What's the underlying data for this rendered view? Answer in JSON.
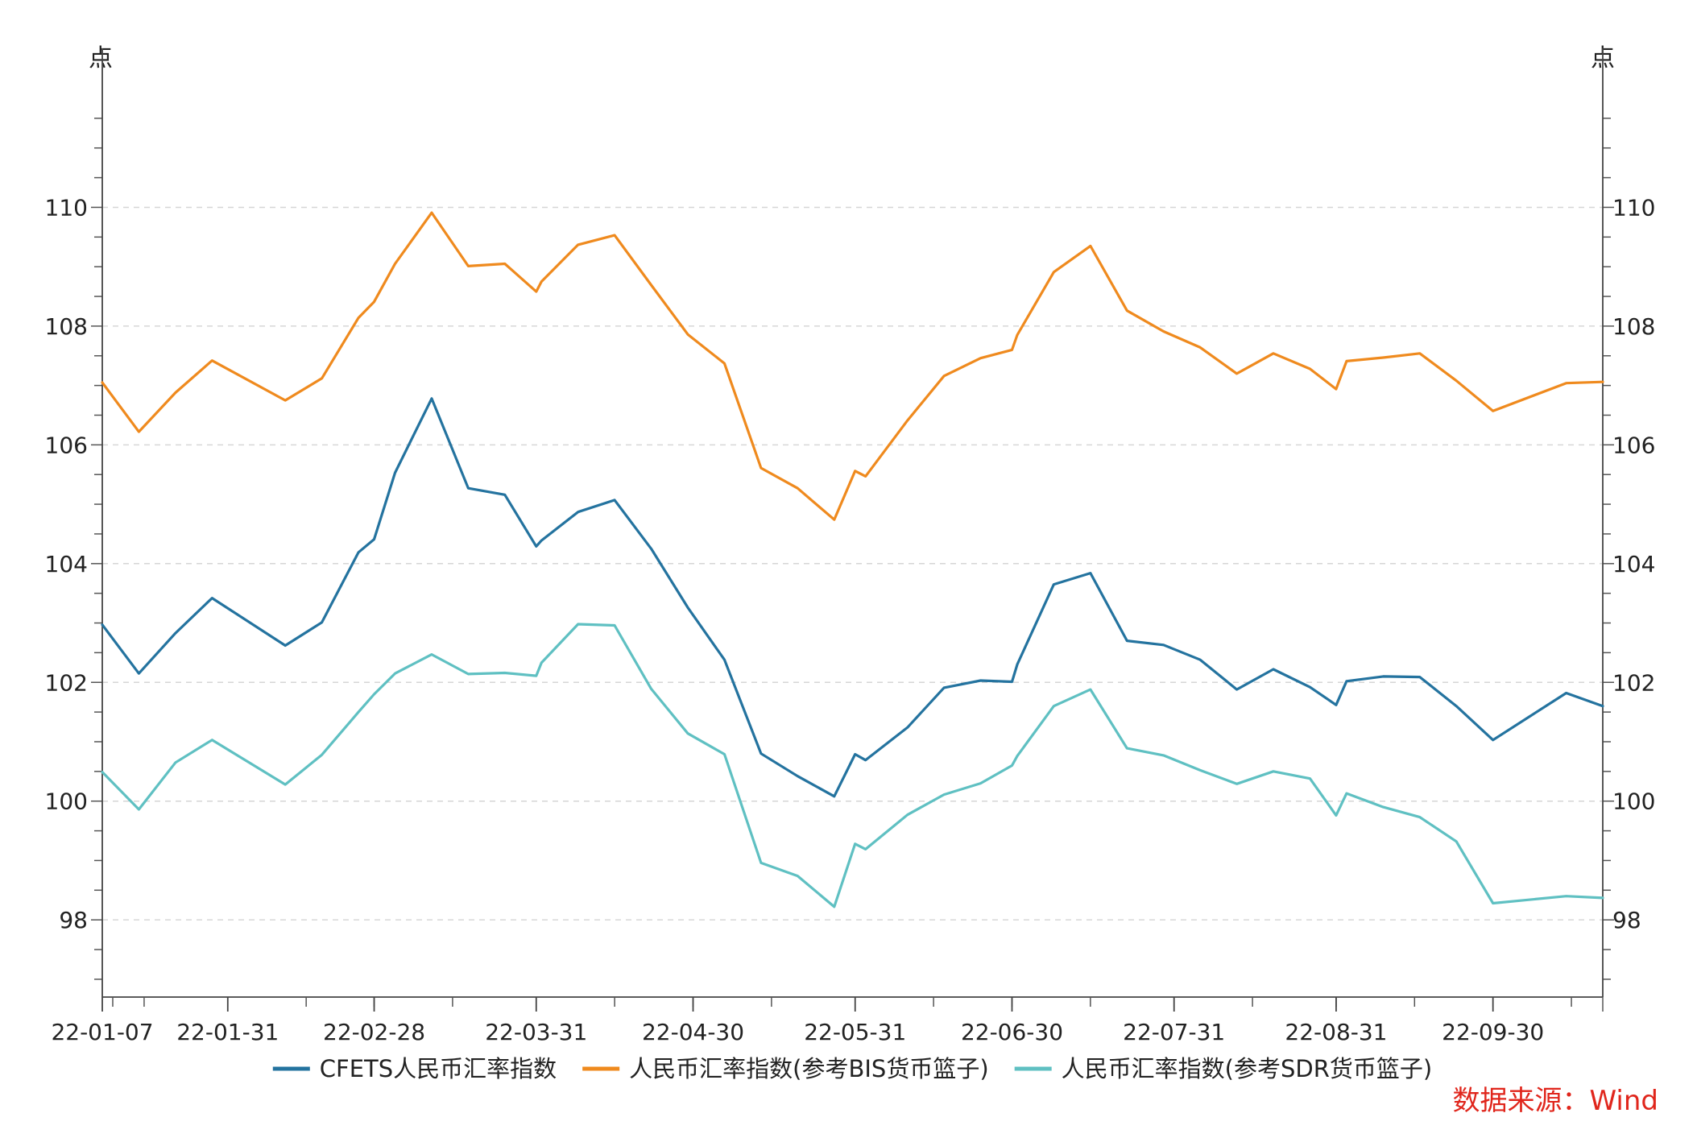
{
  "chart_data": {
    "type": "line",
    "title": "",
    "left_axis_unit": "点",
    "right_axis_unit": "点",
    "ylim": [
      96.7,
      112.0
    ],
    "y_ticks": [
      98,
      100,
      102,
      104,
      106,
      108,
      110
    ],
    "x_tick_labels": [
      "22-01-07",
      "22-01-31",
      "22-02-28",
      "22-03-31",
      "22-04-30",
      "22-05-31",
      "22-06-30",
      "22-07-31",
      "22-08-31",
      "22-09-30"
    ],
    "x_tick_dates": [
      "2022-01-07",
      "2022-01-31",
      "2022-02-28",
      "2022-03-31",
      "2022-04-30",
      "2022-05-31",
      "2022-06-30",
      "2022-07-31",
      "2022-08-31",
      "2022-09-30"
    ],
    "x_range": [
      "2022-01-07",
      "2022-10-21"
    ],
    "grid": "horizontal dashed",
    "legend_position": "bottom",
    "source_text": "数据来源：Wind",
    "series": [
      {
        "name": "CFETS人民币汇率指数",
        "color": "#24739f",
        "points": [
          [
            "2022-01-07",
            102.97
          ],
          [
            "2022-01-14",
            102.15
          ],
          [
            "2022-01-21",
            102.83
          ],
          [
            "2022-01-28",
            103.42
          ],
          [
            "2022-02-11",
            102.62
          ],
          [
            "2022-02-18",
            103.01
          ],
          [
            "2022-02-25",
            104.19
          ],
          [
            "2022-02-28",
            104.41
          ],
          [
            "2022-03-04",
            105.53
          ],
          [
            "2022-03-11",
            106.78
          ],
          [
            "2022-03-18",
            105.27
          ],
          [
            "2022-03-25",
            105.16
          ],
          [
            "2022-03-31",
            104.29
          ],
          [
            "2022-04-01",
            104.39
          ],
          [
            "2022-04-08",
            104.87
          ],
          [
            "2022-04-15",
            105.07
          ],
          [
            "2022-04-22",
            104.25
          ],
          [
            "2022-04-29",
            103.26
          ],
          [
            "2022-05-06",
            102.38
          ],
          [
            "2022-05-13",
            100.8
          ],
          [
            "2022-05-20",
            100.42
          ],
          [
            "2022-05-27",
            100.08
          ],
          [
            "2022-05-31",
            100.79
          ],
          [
            "2022-06-02",
            100.69
          ],
          [
            "2022-06-10",
            101.24
          ],
          [
            "2022-06-17",
            101.91
          ],
          [
            "2022-06-24",
            102.03
          ],
          [
            "2022-06-30",
            102.01
          ],
          [
            "2022-07-01",
            102.3
          ],
          [
            "2022-07-08",
            103.65
          ],
          [
            "2022-07-15",
            103.84
          ],
          [
            "2022-07-22",
            102.7
          ],
          [
            "2022-07-29",
            102.63
          ],
          [
            "2022-08-05",
            102.38
          ],
          [
            "2022-08-12",
            101.88
          ],
          [
            "2022-08-19",
            102.22
          ],
          [
            "2022-08-26",
            101.92
          ],
          [
            "2022-08-31",
            101.62
          ],
          [
            "2022-09-02",
            102.02
          ],
          [
            "2022-09-09",
            102.1
          ],
          [
            "2022-09-16",
            102.09
          ],
          [
            "2022-09-23",
            101.6
          ],
          [
            "2022-09-30",
            101.03
          ],
          [
            "2022-10-14",
            101.82
          ],
          [
            "2022-10-21",
            101.6
          ]
        ]
      },
      {
        "name": "人民币汇率指数(参考BIS货币篮子)",
        "color": "#ef8a1e",
        "points": [
          [
            "2022-01-07",
            107.05
          ],
          [
            "2022-01-14",
            106.22
          ],
          [
            "2022-01-21",
            106.88
          ],
          [
            "2022-01-28",
            107.42
          ],
          [
            "2022-02-11",
            106.75
          ],
          [
            "2022-02-18",
            107.12
          ],
          [
            "2022-02-25",
            108.14
          ],
          [
            "2022-02-28",
            108.41
          ],
          [
            "2022-03-04",
            109.05
          ],
          [
            "2022-03-11",
            109.91
          ],
          [
            "2022-03-18",
            109.01
          ],
          [
            "2022-03-25",
            109.05
          ],
          [
            "2022-03-31",
            108.58
          ],
          [
            "2022-04-01",
            108.75
          ],
          [
            "2022-04-08",
            109.37
          ],
          [
            "2022-04-15",
            109.53
          ],
          [
            "2022-04-22",
            108.69
          ],
          [
            "2022-04-29",
            107.86
          ],
          [
            "2022-05-06",
            107.37
          ],
          [
            "2022-05-13",
            105.61
          ],
          [
            "2022-05-20",
            105.27
          ],
          [
            "2022-05-27",
            104.74
          ],
          [
            "2022-05-31",
            105.56
          ],
          [
            "2022-06-02",
            105.47
          ],
          [
            "2022-06-10",
            106.41
          ],
          [
            "2022-06-17",
            107.16
          ],
          [
            "2022-06-24",
            107.46
          ],
          [
            "2022-06-30",
            107.6
          ],
          [
            "2022-07-01",
            107.85
          ],
          [
            "2022-07-08",
            108.91
          ],
          [
            "2022-07-15",
            109.35
          ],
          [
            "2022-07-22",
            108.26
          ],
          [
            "2022-07-29",
            107.91
          ],
          [
            "2022-08-05",
            107.64
          ],
          [
            "2022-08-12",
            107.2
          ],
          [
            "2022-08-19",
            107.54
          ],
          [
            "2022-08-26",
            107.28
          ],
          [
            "2022-08-31",
            106.94
          ],
          [
            "2022-09-02",
            107.41
          ],
          [
            "2022-09-09",
            107.47
          ],
          [
            "2022-09-16",
            107.54
          ],
          [
            "2022-09-23",
            107.08
          ],
          [
            "2022-09-30",
            106.57
          ],
          [
            "2022-10-14",
            107.04
          ],
          [
            "2022-10-21",
            107.06
          ]
        ]
      },
      {
        "name": "人民币汇率指数(参考SDR货币篮子)",
        "color": "#5fc0c2",
        "points": [
          [
            "2022-01-07",
            100.49
          ],
          [
            "2022-01-14",
            99.86
          ],
          [
            "2022-01-21",
            100.65
          ],
          [
            "2022-01-28",
            101.03
          ],
          [
            "2022-02-11",
            100.28
          ],
          [
            "2022-02-18",
            100.78
          ],
          [
            "2022-02-25",
            101.5
          ],
          [
            "2022-02-28",
            101.8
          ],
          [
            "2022-03-04",
            102.15
          ],
          [
            "2022-03-11",
            102.47
          ],
          [
            "2022-03-18",
            102.14
          ],
          [
            "2022-03-25",
            102.16
          ],
          [
            "2022-03-31",
            102.11
          ],
          [
            "2022-04-01",
            102.33
          ],
          [
            "2022-04-08",
            102.98
          ],
          [
            "2022-04-15",
            102.96
          ],
          [
            "2022-04-22",
            101.89
          ],
          [
            "2022-04-29",
            101.14
          ],
          [
            "2022-05-06",
            100.79
          ],
          [
            "2022-05-13",
            98.96
          ],
          [
            "2022-05-20",
            98.74
          ],
          [
            "2022-05-27",
            98.22
          ],
          [
            "2022-05-31",
            99.28
          ],
          [
            "2022-06-02",
            99.19
          ],
          [
            "2022-06-10",
            99.77
          ],
          [
            "2022-06-17",
            100.11
          ],
          [
            "2022-06-24",
            100.3
          ],
          [
            "2022-06-30",
            100.6
          ],
          [
            "2022-07-01",
            100.76
          ],
          [
            "2022-07-08",
            101.6
          ],
          [
            "2022-07-15",
            101.88
          ],
          [
            "2022-07-22",
            100.89
          ],
          [
            "2022-07-29",
            100.77
          ],
          [
            "2022-08-05",
            100.52
          ],
          [
            "2022-08-12",
            100.29
          ],
          [
            "2022-08-19",
            100.5
          ],
          [
            "2022-08-26",
            100.38
          ],
          [
            "2022-08-31",
            99.76
          ],
          [
            "2022-09-02",
            100.13
          ],
          [
            "2022-09-09",
            99.9
          ],
          [
            "2022-09-16",
            99.73
          ],
          [
            "2022-09-23",
            99.32
          ],
          [
            "2022-09-30",
            98.28
          ],
          [
            "2022-10-14",
            98.4
          ],
          [
            "2022-10-21",
            98.37
          ]
        ]
      }
    ]
  }
}
